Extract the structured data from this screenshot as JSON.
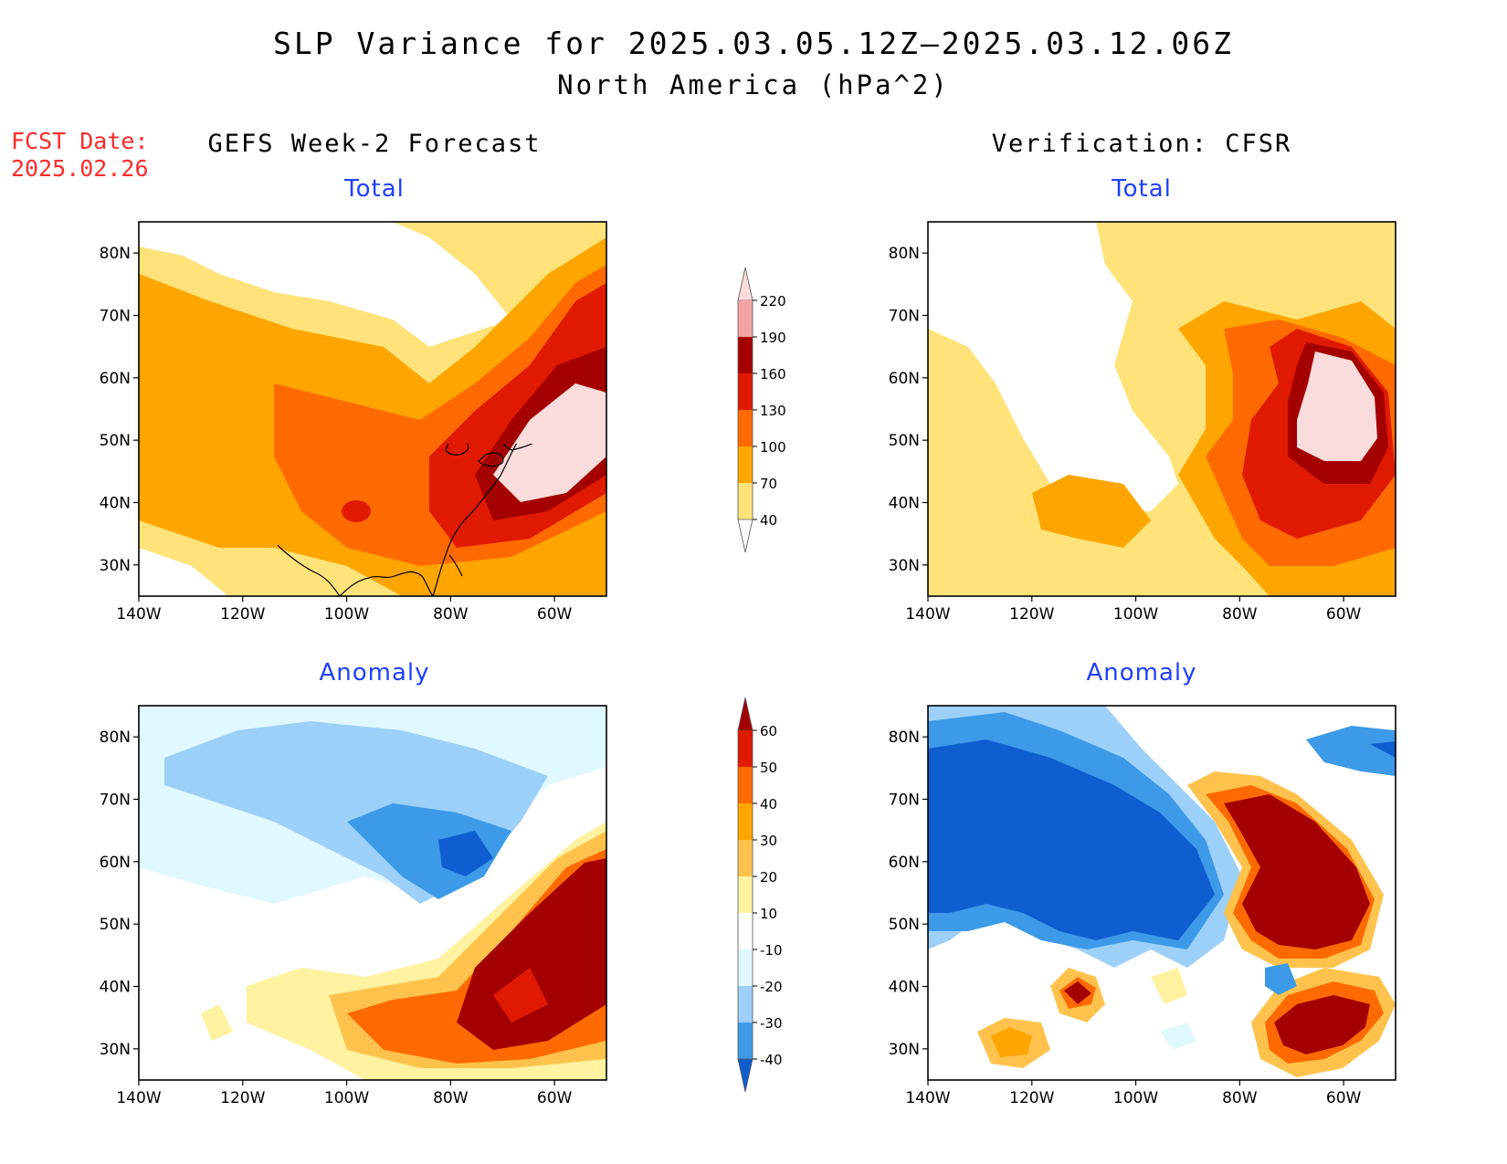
{
  "title": "SLP Variance for 2025.03.05.12Z–2025.03.12.06Z",
  "subtitle": "North America (hPa^2)",
  "fcst_date_label": "FCST Date:",
  "fcst_date_value": "2025.02.26",
  "left_column_title": "GEFS Week-2 Forecast",
  "right_column_title": "Verification: CFSR",
  "panels": [
    {
      "label": "Total",
      "kind": "total"
    },
    {
      "label": "Total",
      "kind": "total"
    },
    {
      "label": "Anomaly",
      "kind": "anomaly"
    },
    {
      "label": "Anomaly",
      "kind": "anomaly"
    }
  ],
  "map_axes": {
    "lat_ticks": [
      "80N",
      "70N",
      "60N",
      "50N",
      "40N",
      "30N"
    ],
    "lon_ticks": [
      "140W",
      "120W",
      "100W",
      "80W",
      "60W"
    ],
    "lat_range": [
      25,
      85
    ],
    "lon_range": [
      -140,
      -50
    ]
  },
  "total_colorbar": {
    "levels": [
      "220",
      "190",
      "160",
      "130",
      "100",
      "70",
      "40"
    ],
    "colors": [
      "#fbdcdc",
      "#f4a3a3",
      "#a50000",
      "#e01a00",
      "#ff6a00",
      "#ffa500",
      "#ffe37a",
      "#ffffff"
    ]
  },
  "anomaly_colorbar": {
    "levels": [
      "60",
      "50",
      "40",
      "30",
      "20",
      "10",
      "-10",
      "-20",
      "-30",
      "-40"
    ],
    "colors": [
      "#a50000",
      "#e01a00",
      "#ff6a00",
      "#ffa500",
      "#ffc34d",
      "#fff2a0",
      "#ffffff",
      "#e0f8ff",
      "#9dd0f8",
      "#3d9ae8",
      "#0f5ed0"
    ]
  },
  "colors": {
    "title": "#000000",
    "fcst_date": "#ff2a2a",
    "panel_label": "#1f3fff"
  }
}
